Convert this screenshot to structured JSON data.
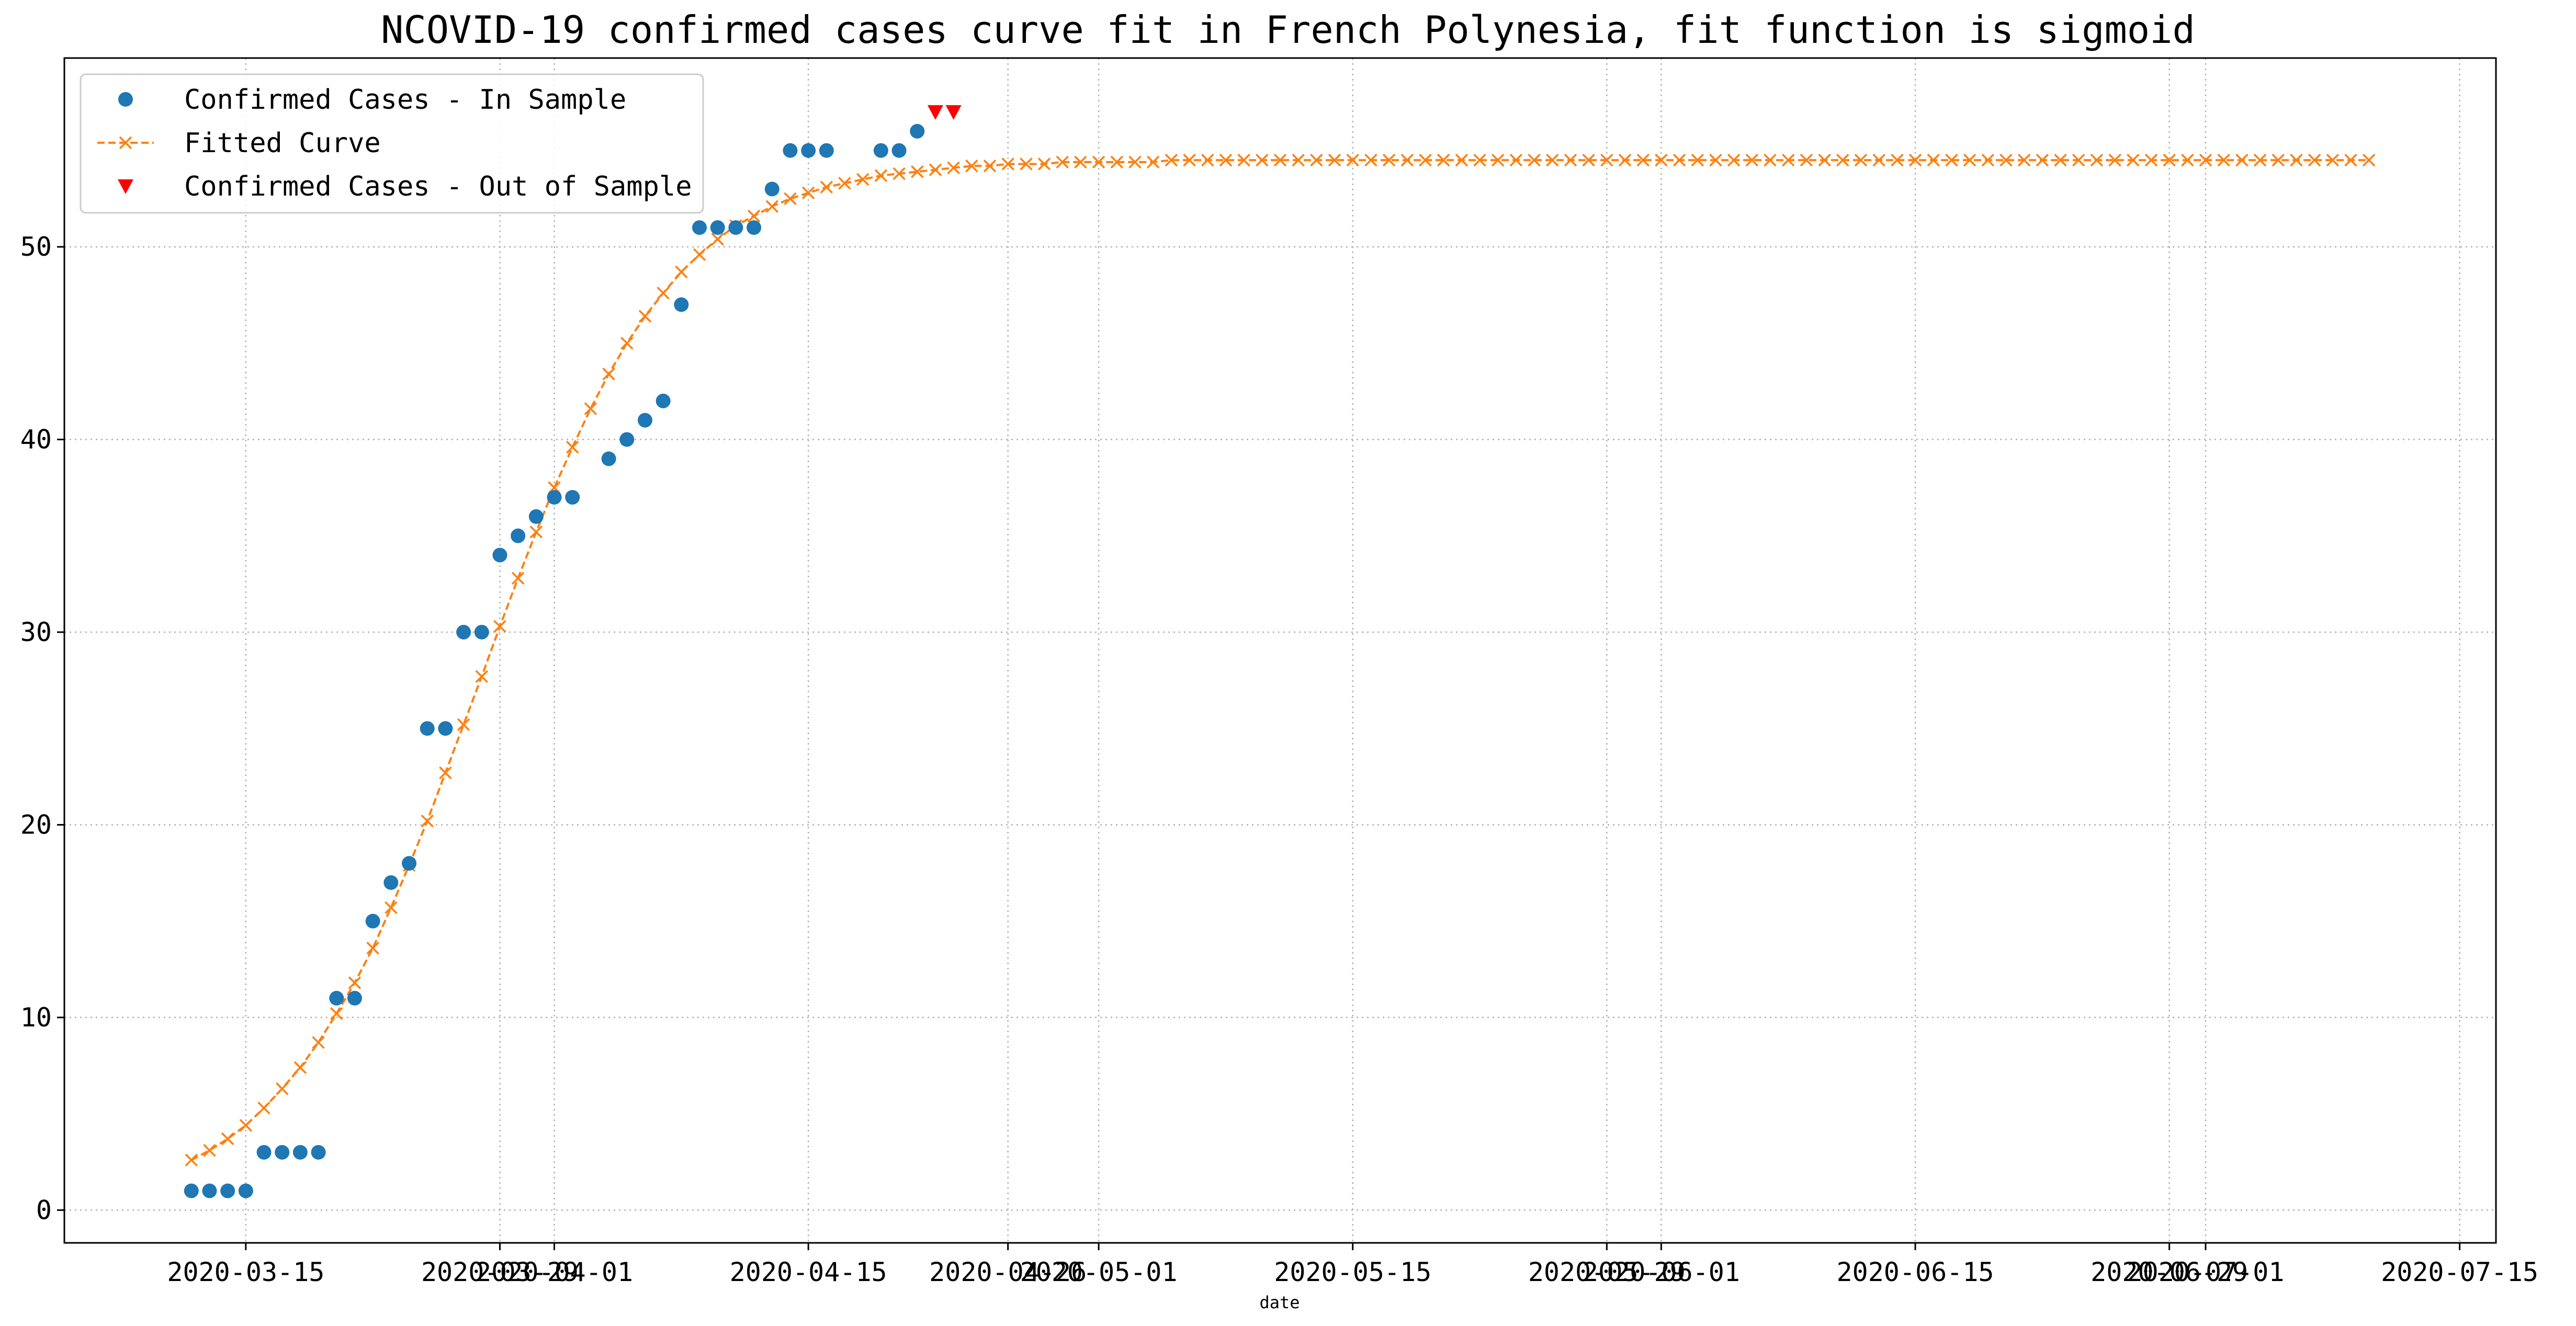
{
  "chart_data": {
    "type": "line",
    "title": "NCOVID-19 confirmed cases curve fit in French Polynesia, fit function is sigmoid",
    "xlabel": "date",
    "ylabel": "",
    "x_axis": "date",
    "xlim": [
      "2020-03-05",
      "2020-07-17"
    ],
    "ylim": [
      -1.7,
      59.8
    ],
    "grid": true,
    "legend_position": "top-left",
    "x_tick_labels": [
      {
        "date": "2020-03-15",
        "label": "2020-03-15"
      },
      {
        "date": "2020-03-29",
        "label": "2020-03-29"
      },
      {
        "date": "2020-04-01",
        "label": "2020-04-01"
      },
      {
        "date": "2020-04-15",
        "label": "2020-04-15"
      },
      {
        "date": "2020-04-26",
        "label": "2020-04-26"
      },
      {
        "date": "2020-05-01",
        "label": "2020-05-01"
      },
      {
        "date": "2020-05-15",
        "label": "2020-05-15"
      },
      {
        "date": "2020-05-29",
        "label": "2020-05-29"
      },
      {
        "date": "2020-06-01",
        "label": "2020-06-01"
      },
      {
        "date": "2020-06-15",
        "label": "2020-06-15"
      },
      {
        "date": "2020-06-29",
        "label": "2020-06-29"
      },
      {
        "date": "2020-07-01",
        "label": "2020-07-01"
      },
      {
        "date": "2020-07-15",
        "label": "2020-07-15"
      }
    ],
    "y_ticks": [
      0,
      10,
      20,
      30,
      40,
      50
    ],
    "series": [
      {
        "name": "Confirmed Cases - In Sample",
        "marker": "circle",
        "color": "#1f77b4",
        "points": [
          [
            "2020-03-12",
            1
          ],
          [
            "2020-03-13",
            1
          ],
          [
            "2020-03-14",
            1
          ],
          [
            "2020-03-15",
            1
          ],
          [
            "2020-03-16",
            3
          ],
          [
            "2020-03-17",
            3
          ],
          [
            "2020-03-18",
            3
          ],
          [
            "2020-03-19",
            3
          ],
          [
            "2020-03-20",
            11
          ],
          [
            "2020-03-21",
            11
          ],
          [
            "2020-03-22",
            15
          ],
          [
            "2020-03-23",
            17
          ],
          [
            "2020-03-24",
            18
          ],
          [
            "2020-03-25",
            25
          ],
          [
            "2020-03-26",
            25
          ],
          [
            "2020-03-27",
            30
          ],
          [
            "2020-03-28",
            30
          ],
          [
            "2020-03-29",
            34
          ],
          [
            "2020-03-30",
            35
          ],
          [
            "2020-03-31",
            36
          ],
          [
            "2020-04-01",
            37
          ],
          [
            "2020-04-02",
            37
          ],
          [
            "2020-04-04",
            39
          ],
          [
            "2020-04-05",
            40
          ],
          [
            "2020-04-06",
            41
          ],
          [
            "2020-04-07",
            42
          ],
          [
            "2020-04-08",
            47
          ],
          [
            "2020-04-09",
            51
          ],
          [
            "2020-04-10",
            51
          ],
          [
            "2020-04-11",
            51
          ],
          [
            "2020-04-12",
            51
          ],
          [
            "2020-04-13",
            53
          ],
          [
            "2020-04-14",
            55
          ],
          [
            "2020-04-15",
            55
          ],
          [
            "2020-04-16",
            55
          ],
          [
            "2020-04-19",
            55
          ],
          [
            "2020-04-20",
            55
          ],
          [
            "2020-04-21",
            56
          ]
        ]
      },
      {
        "name": "Fitted Curve",
        "marker": "x",
        "linestyle": "dashed",
        "color": "#ff7f0e",
        "points": [
          [
            "2020-03-12",
            2.6
          ],
          [
            "2020-03-13",
            3.1
          ],
          [
            "2020-03-14",
            3.7
          ],
          [
            "2020-03-15",
            4.4
          ],
          [
            "2020-03-16",
            5.3
          ],
          [
            "2020-03-17",
            6.3
          ],
          [
            "2020-03-18",
            7.4
          ],
          [
            "2020-03-19",
            8.7
          ],
          [
            "2020-03-20",
            10.2
          ],
          [
            "2020-03-21",
            11.8
          ],
          [
            "2020-03-22",
            13.6
          ],
          [
            "2020-03-23",
            15.7
          ],
          [
            "2020-03-24",
            17.9
          ],
          [
            "2020-03-25",
            20.2
          ],
          [
            "2020-03-26",
            22.7
          ],
          [
            "2020-03-27",
            25.2
          ],
          [
            "2020-03-28",
            27.7
          ],
          [
            "2020-03-29",
            30.3
          ],
          [
            "2020-03-30",
            32.8
          ],
          [
            "2020-03-31",
            35.2
          ],
          [
            "2020-04-01",
            37.5
          ],
          [
            "2020-04-02",
            39.6
          ],
          [
            "2020-04-03",
            41.6
          ],
          [
            "2020-04-04",
            43.4
          ],
          [
            "2020-04-05",
            45.0
          ],
          [
            "2020-04-06",
            46.4
          ],
          [
            "2020-04-07",
            47.6
          ],
          [
            "2020-04-08",
            48.7
          ],
          [
            "2020-04-09",
            49.6
          ],
          [
            "2020-04-10",
            50.4
          ],
          [
            "2020-04-11",
            51.1
          ],
          [
            "2020-04-12",
            51.6
          ],
          [
            "2020-04-13",
            52.1
          ],
          [
            "2020-04-14",
            52.5
          ],
          [
            "2020-04-15",
            52.8
          ],
          [
            "2020-04-16",
            53.1
          ],
          [
            "2020-04-17",
            53.3
          ],
          [
            "2020-04-18",
            53.5
          ],
          [
            "2020-04-19",
            53.7
          ],
          [
            "2020-04-20",
            53.8
          ],
          [
            "2020-04-21",
            53.9
          ],
          [
            "2020-04-22",
            54.0
          ],
          [
            "2020-04-23",
            54.1
          ],
          [
            "2020-04-24",
            54.2
          ],
          [
            "2020-04-25",
            54.2
          ],
          [
            "2020-04-26",
            54.3
          ],
          [
            "2020-04-27",
            54.3
          ],
          [
            "2020-04-28",
            54.3
          ],
          [
            "2020-04-29",
            54.4
          ],
          [
            "2020-04-30",
            54.4
          ],
          [
            "2020-05-01",
            54.4
          ],
          [
            "2020-05-02",
            54.4
          ],
          [
            "2020-05-03",
            54.4
          ],
          [
            "2020-05-04",
            54.4
          ],
          [
            "2020-05-05",
            54.5
          ],
          [
            "2020-05-06",
            54.5
          ],
          [
            "2020-05-07",
            54.5
          ],
          [
            "2020-05-08",
            54.5
          ],
          [
            "2020-05-09",
            54.5
          ],
          [
            "2020-05-10",
            54.5
          ],
          [
            "2020-05-11",
            54.5
          ],
          [
            "2020-05-12",
            54.5
          ],
          [
            "2020-05-13",
            54.5
          ],
          [
            "2020-05-14",
            54.5
          ],
          [
            "2020-05-15",
            54.5
          ],
          [
            "2020-05-16",
            54.5
          ],
          [
            "2020-05-17",
            54.5
          ],
          [
            "2020-05-18",
            54.5
          ],
          [
            "2020-05-19",
            54.5
          ],
          [
            "2020-05-20",
            54.5
          ],
          [
            "2020-05-21",
            54.5
          ],
          [
            "2020-05-22",
            54.5
          ],
          [
            "2020-05-23",
            54.5
          ],
          [
            "2020-05-24",
            54.5
          ],
          [
            "2020-05-25",
            54.5
          ],
          [
            "2020-05-26",
            54.5
          ],
          [
            "2020-05-27",
            54.5
          ],
          [
            "2020-05-28",
            54.5
          ],
          [
            "2020-05-29",
            54.5
          ],
          [
            "2020-05-30",
            54.5
          ],
          [
            "2020-05-31",
            54.5
          ],
          [
            "2020-06-01",
            54.5
          ],
          [
            "2020-06-02",
            54.5
          ],
          [
            "2020-06-03",
            54.5
          ],
          [
            "2020-06-04",
            54.5
          ],
          [
            "2020-06-05",
            54.5
          ],
          [
            "2020-06-06",
            54.5
          ],
          [
            "2020-06-07",
            54.5
          ],
          [
            "2020-06-08",
            54.5
          ],
          [
            "2020-06-09",
            54.5
          ],
          [
            "2020-06-10",
            54.5
          ],
          [
            "2020-06-11",
            54.5
          ],
          [
            "2020-06-12",
            54.5
          ],
          [
            "2020-06-13",
            54.5
          ],
          [
            "2020-06-14",
            54.5
          ],
          [
            "2020-06-15",
            54.5
          ],
          [
            "2020-06-16",
            54.5
          ],
          [
            "2020-06-17",
            54.5
          ],
          [
            "2020-06-18",
            54.5
          ],
          [
            "2020-06-19",
            54.5
          ],
          [
            "2020-06-20",
            54.5
          ],
          [
            "2020-06-21",
            54.5
          ],
          [
            "2020-06-22",
            54.5
          ],
          [
            "2020-06-23",
            54.5
          ],
          [
            "2020-06-24",
            54.5
          ],
          [
            "2020-06-25",
            54.5
          ],
          [
            "2020-06-26",
            54.5
          ],
          [
            "2020-06-27",
            54.5
          ],
          [
            "2020-06-28",
            54.5
          ],
          [
            "2020-06-29",
            54.5
          ],
          [
            "2020-06-30",
            54.5
          ],
          [
            "2020-07-01",
            54.5
          ],
          [
            "2020-07-02",
            54.5
          ],
          [
            "2020-07-03",
            54.5
          ],
          [
            "2020-07-04",
            54.5
          ],
          [
            "2020-07-05",
            54.5
          ],
          [
            "2020-07-06",
            54.5
          ],
          [
            "2020-07-07",
            54.5
          ],
          [
            "2020-07-08",
            54.5
          ],
          [
            "2020-07-09",
            54.5
          ],
          [
            "2020-07-10",
            54.5
          ]
        ]
      },
      {
        "name": "Confirmed Cases - Out of Sample",
        "marker": "triangle-down",
        "color": "#ff0000",
        "points": [
          [
            "2020-04-22",
            57
          ],
          [
            "2020-04-23",
            57
          ]
        ]
      }
    ]
  }
}
